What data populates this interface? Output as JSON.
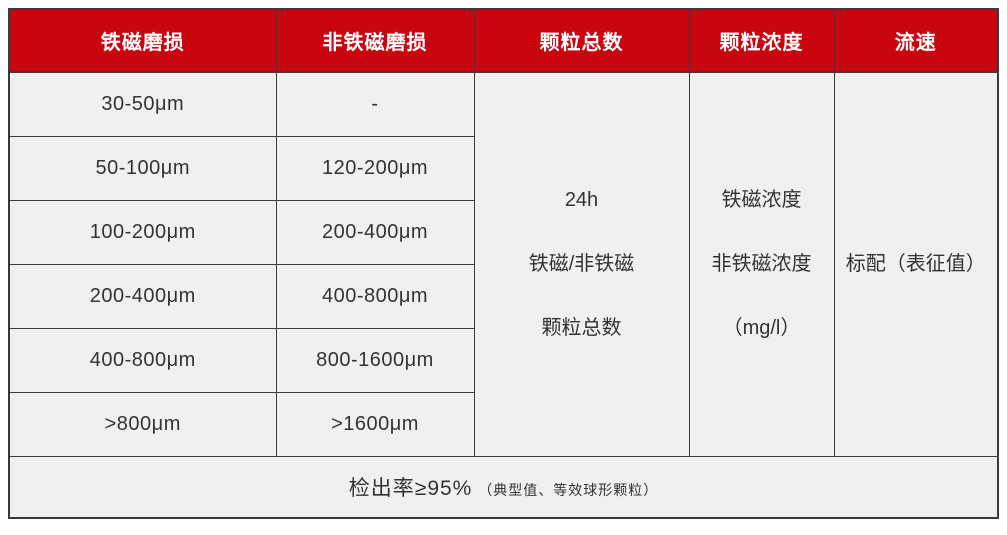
{
  "chart_data": {
    "type": "table",
    "columns": [
      "铁磁磨损",
      "非铁磁磨损",
      "颗粒总数",
      "颗粒浓度",
      "流速"
    ],
    "body_rows": [
      [
        "30-50μm",
        "-"
      ],
      [
        "50-100μm",
        "120-200μm"
      ],
      [
        "100-200μm",
        "200-400μm"
      ],
      [
        "200-400μm",
        "400-800μm"
      ],
      [
        "400-800μm",
        "800-1600μm"
      ],
      [
        ">800μm",
        ">1600μm"
      ]
    ],
    "merged": {
      "total_particles": [
        "24h",
        "铁磁/非铁磁",
        "颗粒总数"
      ],
      "particle_concentration": [
        "铁磁浓度",
        "非铁磁浓度",
        "（mg/l）"
      ],
      "flow_rate": [
        "标配（表征值）"
      ]
    },
    "footer": {
      "main": "检出率≥95%",
      "note": "（典型值、等效球形颗粒）"
    },
    "layout": {
      "merged_cells_span_rows": 6,
      "footer_spans_all_columns": true,
      "grid": "on"
    }
  },
  "colors": {
    "header_bg": "#c9050f",
    "header_text": "#ffffff",
    "cell_bg": "#f0f0f0",
    "body_text": "#333333",
    "border": "#3a3a3a",
    "page_bg": "#ffffff"
  }
}
